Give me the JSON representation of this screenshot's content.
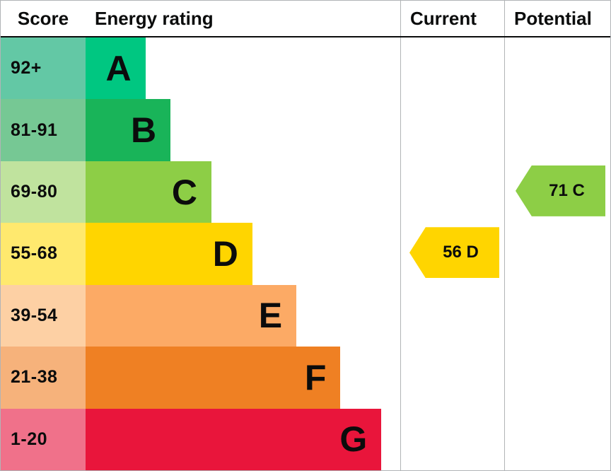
{
  "header": {
    "score": "Score",
    "energy_rating": "Energy rating",
    "current": "Current",
    "potential": "Potential"
  },
  "chart_data": {
    "type": "table",
    "title": "Energy rating",
    "description": "Energy performance certificate (EPC) rating chart with score bands A to G, plus current and potential rating arrows",
    "bands": [
      {
        "score": "92+",
        "letter": "A",
        "bar_color": "#00c781",
        "score_color": "#63c8a5",
        "bar_width_pct": 19
      },
      {
        "score": "81-91",
        "letter": "B",
        "bar_color": "#19b459",
        "score_color": "#76c894",
        "bar_width_pct": 27
      },
      {
        "score": "69-80",
        "letter": "C",
        "bar_color": "#8dce46",
        "score_color": "#c0e39e",
        "bar_width_pct": 40
      },
      {
        "score": "55-68",
        "letter": "D",
        "bar_color": "#ffd500",
        "score_color": "#ffe96e",
        "bar_width_pct": 53
      },
      {
        "score": "39-54",
        "letter": "E",
        "bar_color": "#fcaa65",
        "score_color": "#fdd0a4",
        "bar_width_pct": 67
      },
      {
        "score": "21-38",
        "letter": "F",
        "bar_color": "#ef8023",
        "score_color": "#f6b27b",
        "bar_width_pct": 81
      },
      {
        "score": "1-20",
        "letter": "G",
        "bar_color": "#e9153b",
        "score_color": "#f0718a",
        "bar_width_pct": 94
      }
    ],
    "current": {
      "label": "56 D",
      "value": 56,
      "band": "D",
      "color": "#ffd500",
      "row_index": 3
    },
    "potential": {
      "label": "71 C",
      "value": 71,
      "band": "C",
      "color": "#8dce46",
      "row_index": 2
    }
  }
}
